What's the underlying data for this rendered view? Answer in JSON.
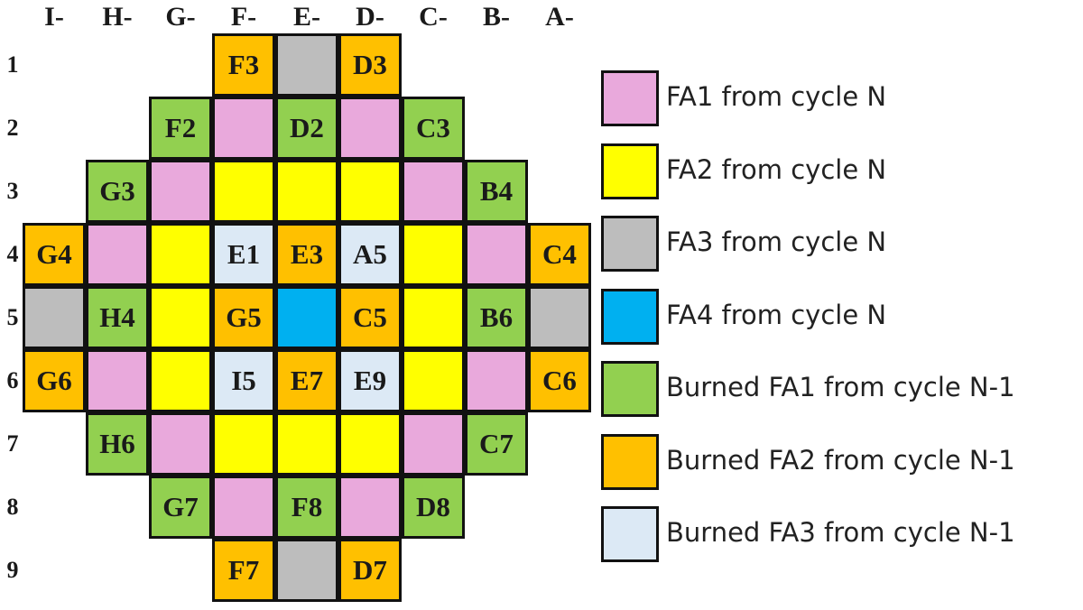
{
  "colors": {
    "fa1": "#e9a9dc",
    "fa2": "#ffff00",
    "fa3": "#bdbdbd",
    "fa4": "#00b0f0",
    "bfa1": "#92d050",
    "bfa2": "#ffc000",
    "bfa3": "#dce9f5"
  },
  "columns": [
    "I-",
    "H-",
    "G-",
    "F-",
    "E-",
    "D-",
    "C-",
    "B-",
    "A-"
  ],
  "rows": [
    "1",
    "2",
    "3",
    "4",
    "5",
    "6",
    "7",
    "8",
    "9"
  ],
  "grid": [
    [
      null,
      null,
      null,
      {
        "t": "bfa2",
        "l": "F3"
      },
      {
        "t": "fa3",
        "l": ""
      },
      {
        "t": "bfa2",
        "l": "D3"
      },
      null,
      null,
      null
    ],
    [
      null,
      null,
      {
        "t": "bfa1",
        "l": "F2"
      },
      {
        "t": "fa1",
        "l": ""
      },
      {
        "t": "bfa1",
        "l": "D2"
      },
      {
        "t": "fa1",
        "l": ""
      },
      {
        "t": "bfa1",
        "l": "C3"
      },
      null,
      null
    ],
    [
      null,
      {
        "t": "bfa1",
        "l": "G3"
      },
      {
        "t": "fa1",
        "l": ""
      },
      {
        "t": "fa2",
        "l": ""
      },
      {
        "t": "fa2",
        "l": ""
      },
      {
        "t": "fa2",
        "l": ""
      },
      {
        "t": "fa1",
        "l": ""
      },
      {
        "t": "bfa1",
        "l": "B4"
      },
      null
    ],
    [
      {
        "t": "bfa2",
        "l": "G4"
      },
      {
        "t": "fa1",
        "l": ""
      },
      {
        "t": "fa2",
        "l": ""
      },
      {
        "t": "bfa3",
        "l": "E1"
      },
      {
        "t": "bfa2",
        "l": "E3"
      },
      {
        "t": "bfa3",
        "l": "A5"
      },
      {
        "t": "fa2",
        "l": ""
      },
      {
        "t": "fa1",
        "l": ""
      },
      {
        "t": "bfa2",
        "l": "C4"
      }
    ],
    [
      {
        "t": "fa3",
        "l": ""
      },
      {
        "t": "bfa1",
        "l": "H4"
      },
      {
        "t": "fa2",
        "l": ""
      },
      {
        "t": "bfa2",
        "l": "G5"
      },
      {
        "t": "fa4",
        "l": ""
      },
      {
        "t": "bfa2",
        "l": "C5"
      },
      {
        "t": "fa2",
        "l": ""
      },
      {
        "t": "bfa1",
        "l": "B6"
      },
      {
        "t": "fa3",
        "l": ""
      }
    ],
    [
      {
        "t": "bfa2",
        "l": "G6"
      },
      {
        "t": "fa1",
        "l": ""
      },
      {
        "t": "fa2",
        "l": ""
      },
      {
        "t": "bfa3",
        "l": "I5"
      },
      {
        "t": "bfa2",
        "l": "E7"
      },
      {
        "t": "bfa3",
        "l": "E9"
      },
      {
        "t": "fa2",
        "l": ""
      },
      {
        "t": "fa1",
        "l": ""
      },
      {
        "t": "bfa2",
        "l": "C6"
      }
    ],
    [
      null,
      {
        "t": "bfa1",
        "l": "H6"
      },
      {
        "t": "fa1",
        "l": ""
      },
      {
        "t": "fa2",
        "l": ""
      },
      {
        "t": "fa2",
        "l": ""
      },
      {
        "t": "fa2",
        "l": ""
      },
      {
        "t": "fa1",
        "l": ""
      },
      {
        "t": "bfa1",
        "l": "C7"
      },
      null
    ],
    [
      null,
      null,
      {
        "t": "bfa1",
        "l": "G7"
      },
      {
        "t": "fa1",
        "l": ""
      },
      {
        "t": "bfa1",
        "l": "F8"
      },
      {
        "t": "fa1",
        "l": ""
      },
      {
        "t": "bfa1",
        "l": "D8"
      },
      null,
      null
    ],
    [
      null,
      null,
      null,
      {
        "t": "bfa2",
        "l": "F7"
      },
      {
        "t": "fa3",
        "l": ""
      },
      {
        "t": "bfa2",
        "l": "D7"
      },
      null,
      null,
      null
    ]
  ],
  "legend": [
    {
      "type": "fa1",
      "label": "FA1 from cycle N"
    },
    {
      "type": "fa2",
      "label": "FA2 from cycle N"
    },
    {
      "type": "fa3",
      "label": "FA3 from cycle N"
    },
    {
      "type": "fa4",
      "label": "FA4 from cycle N"
    },
    {
      "type": "bfa1",
      "label": "Burned FA1 from cycle N-1"
    },
    {
      "type": "bfa2",
      "label": "Burned FA2 from cycle N-1"
    },
    {
      "type": "bfa3",
      "label": "Burned FA3 from cycle N-1"
    }
  ]
}
